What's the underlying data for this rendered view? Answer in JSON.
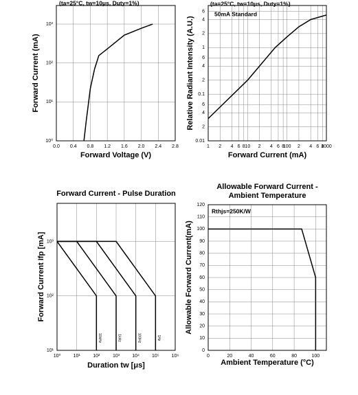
{
  "chart_data": [
    {
      "type": "line",
      "xlabel": "Forward Voltage (V)",
      "ylabel": "Forward Current (mA)",
      "annotations": [
        "(ta=25°C, tw=10μs, Duty=1%)"
      ],
      "xlim": [
        0,
        2.8
      ],
      "ylim": [
        1,
        3000
      ],
      "ylog": true,
      "grid": true,
      "xticks": [
        {
          "value": 0,
          "label": "0.0"
        },
        0.4,
        0.8,
        1.2,
        1.6,
        {
          "value": 2,
          "label": "2.0"
        },
        2.4,
        2.8
      ],
      "yticks": [
        {
          "value": 1,
          "label": "10⁰"
        },
        {
          "value": 10,
          "label": "10¹"
        },
        {
          "value": 100,
          "label": "10²"
        },
        {
          "value": 1000,
          "label": "10³"
        }
      ],
      "series": [
        {
          "color": "#000000",
          "x": [
            0.65,
            0.7,
            0.8,
            0.9,
            1.0,
            1.2,
            1.6,
            2.0,
            2.27
          ],
          "values": [
            1,
            3,
            22,
            70,
            155,
            230,
            520,
            780,
            1000
          ]
        }
      ]
    },
    {
      "type": "line",
      "xlabel": "Forward Current (mA)",
      "ylabel": "Relative Radiant Intensity (A.U.)",
      "annotations": [
        "(ta=25°C, tw=10μs, Duty=1%)",
        "50mA Standard"
      ],
      "xlim": [
        1,
        1000
      ],
      "ylim": [
        0.01,
        8
      ],
      "xlog": true,
      "ylog": true,
      "grid": true,
      "xticks": [
        1,
        2,
        4,
        6,
        8,
        10,
        {
          "value": 20,
          "label": "2"
        },
        {
          "value": 40,
          "label": "4"
        },
        {
          "value": 60,
          "label": "6"
        },
        {
          "value": 80,
          "label": "8"
        },
        100,
        {
          "value": 200,
          "label": "2"
        },
        {
          "value": 400,
          "label": "4"
        },
        {
          "value": 600,
          "label": "6"
        },
        {
          "value": 800,
          "label": "8"
        },
        1000
      ],
      "yticks": [
        0.01,
        {
          "value": 0.02,
          "label": "2"
        },
        {
          "value": 0.04,
          "label": "4"
        },
        {
          "value": 0.06,
          "label": "6"
        },
        0.1,
        {
          "value": 0.2,
          "label": "2"
        },
        {
          "value": 0.4,
          "label": "4"
        },
        {
          "value": 0.6,
          "label": "6"
        },
        1,
        2,
        4,
        6
      ],
      "series": [
        {
          "color": "#000000",
          "x": [
            1,
            10,
            50,
            100,
            200,
            400,
            1000
          ],
          "values": [
            0.03,
            0.2,
            1,
            1.7,
            2.8,
            4,
            5
          ]
        }
      ]
    },
    {
      "type": "line",
      "title": "Forward Current - Pulse Duration",
      "xlabel": "Duration tw [μs]",
      "ylabel": "Forward Current Ifp [mA]",
      "xlim": [
        1,
        1000000
      ],
      "ylim": [
        10,
        5000
      ],
      "xlog": true,
      "ylog": true,
      "grid": true,
      "xticks": [
        {
          "value": 1,
          "label": "10⁰"
        },
        {
          "value": 10,
          "label": "10¹"
        },
        {
          "value": 100,
          "label": "10²"
        },
        {
          "value": 1000,
          "label": "10³"
        },
        {
          "value": 10000,
          "label": "10⁴"
        },
        {
          "value": 100000,
          "label": "10⁵"
        },
        {
          "value": 1000000,
          "label": "10⁶"
        }
      ],
      "yticks": [
        {
          "value": 10,
          "label": "10¹"
        },
        {
          "value": 100,
          "label": "10²"
        },
        {
          "value": 1000,
          "label": "10³"
        }
      ],
      "series": [
        {
          "name": "10kHz",
          "color": "#000000",
          "x": [
            1,
            100,
            100
          ],
          "values": [
            1000,
            100,
            10
          ]
        },
        {
          "name": "1kHz",
          "color": "#000000",
          "x": [
            1,
            10,
            1000,
            1000
          ],
          "values": [
            1000,
            1000,
            100,
            10
          ]
        },
        {
          "name": "100Hz",
          "color": "#000000",
          "x": [
            1,
            100,
            10000,
            10000
          ],
          "values": [
            1000,
            1000,
            100,
            10
          ]
        },
        {
          "name": "1Hz",
          "color": "#000000",
          "x": [
            1,
            1000,
            100000,
            100000
          ],
          "values": [
            1000,
            1000,
            100,
            10
          ]
        }
      ]
    },
    {
      "type": "line",
      "title": [
        "Allowable Forward Current -",
        "Ambient Temperature"
      ],
      "xlabel": "Ambient Temperature (°C)",
      "ylabel": "Allowable Forward Current(mA)",
      "annotations": [
        "Rthjs=250K/W"
      ],
      "xlim": [
        0,
        110
      ],
      "ylim": [
        0,
        120
      ],
      "grid": true,
      "xticks": [
        0,
        20,
        40,
        60,
        80,
        100
      ],
      "yticks": [
        0,
        10,
        20,
        30,
        40,
        50,
        60,
        70,
        80,
        90,
        100,
        110,
        120
      ],
      "series": [
        {
          "color": "#000000",
          "x": [
            0,
            87,
            100,
            100
          ],
          "values": [
            100,
            100,
            60,
            0
          ]
        }
      ]
    }
  ]
}
